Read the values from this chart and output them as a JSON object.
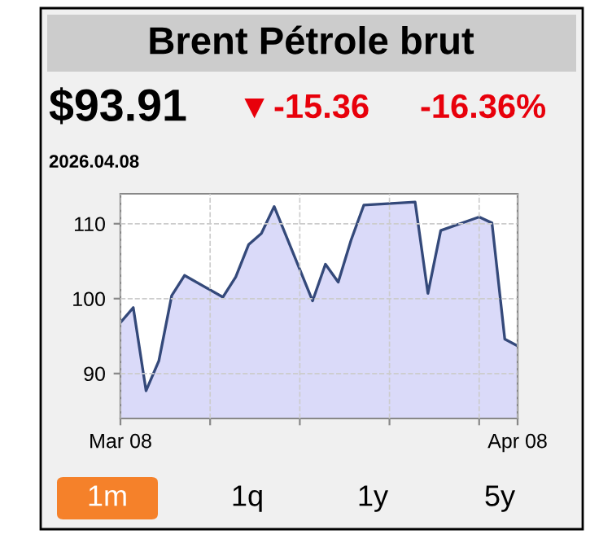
{
  "chart_data": {
    "type": "area",
    "title": "Brent Pétrole brut",
    "annotations": [
      "$93.91",
      "▼",
      "-15.36",
      "-16.36%",
      "2026.04.08",
      "1m",
      "1q",
      "1y",
      "5y"
    ],
    "x": [
      "2026-03-08",
      "2026-03-09",
      "2026-03-10",
      "2026-03-11",
      "2026-03-12",
      "2026-03-13",
      "2026-03-16",
      "2026-03-17",
      "2026-03-18",
      "2026-03-19",
      "2026-03-20",
      "2026-03-23",
      "2026-03-24",
      "2026-03-25",
      "2026-03-26",
      "2026-03-27",
      "2026-03-31",
      "2026-04-01",
      "2026-04-02",
      "2026-04-05",
      "2026-04-06",
      "2026-04-07",
      "2026-04-08"
    ],
    "series": [
      {
        "color": "#34497a",
        "values": [
          96.8,
          98.8,
          87.7,
          91.7,
          100.4,
          103.1,
          100.2,
          102.9,
          107.2,
          108.7,
          112.3,
          99.7,
          104.6,
          102.2,
          107.8,
          112.5,
          112.9,
          100.7,
          109.1,
          110.9,
          110.1,
          94.6,
          93.7
        ]
      }
    ],
    "xlim": [
      "2026-03-08",
      "2026-04-08"
    ],
    "xticks": [
      {
        "value": "2026-03-08",
        "label": "Mar 08"
      },
      {
        "value": "2026-03-15",
        "label": null
      },
      {
        "value": "2026-03-22",
        "label": null
      },
      {
        "value": "2026-03-29",
        "label": null
      },
      {
        "value": "2026-04-05",
        "label": null
      },
      {
        "value": "2026-04-08",
        "label": "Apr 08"
      }
    ],
    "ylim": [
      84,
      114
    ],
    "yticks": [
      90,
      100,
      110
    ],
    "grid": true
  }
}
